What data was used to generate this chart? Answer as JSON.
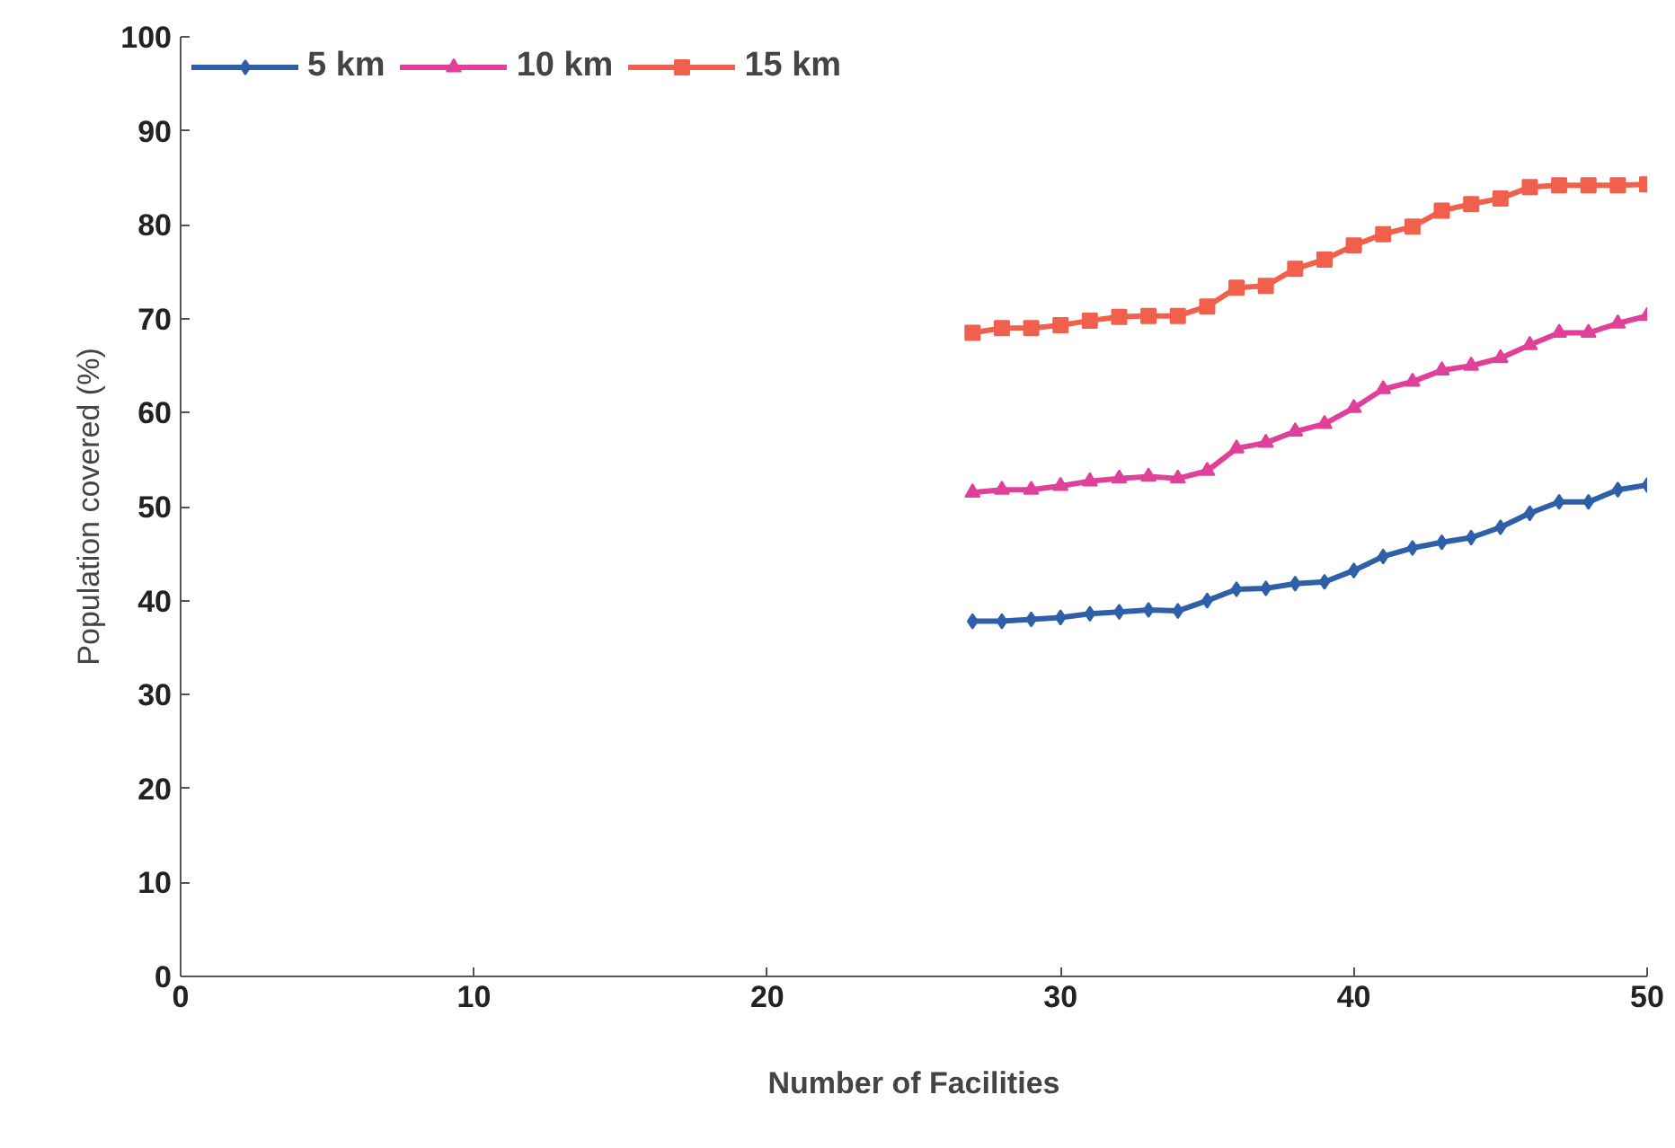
{
  "chart_data": {
    "type": "line",
    "xlabel": "Number of Facilities",
    "ylabel": "Population covered (%)",
    "x": [
      27,
      28,
      29,
      30,
      31,
      32,
      33,
      34,
      35,
      36,
      37,
      38,
      39,
      40,
      41,
      42,
      43,
      44,
      45,
      46,
      47,
      48,
      49,
      50
    ],
    "xlim": [
      0,
      50
    ],
    "xticks": [
      0,
      10,
      20,
      30,
      40,
      50
    ],
    "ylim": [
      0,
      100
    ],
    "yticks": [
      0,
      10,
      20,
      30,
      40,
      50,
      60,
      70,
      80,
      90,
      100
    ],
    "grid": false,
    "legend": "top left",
    "line_style": "solid",
    "series": [
      {
        "name": "5 km",
        "color": "#2e5fa8",
        "marker": "diamond",
        "values": [
          37.8,
          37.8,
          38,
          38.2,
          38.6,
          38.8,
          39,
          38.9,
          40,
          41.2,
          41.3,
          41.8,
          42,
          43.2,
          44.7,
          45.6,
          46.2,
          46.7,
          47.8,
          49.3,
          50.5,
          50.5,
          51.8,
          52.3
        ]
      },
      {
        "name": "10 km",
        "color": "#e0409a",
        "marker": "triangle",
        "values": [
          51.5,
          51.8,
          51.8,
          52.2,
          52.7,
          53,
          53.2,
          53,
          53.8,
          56.2,
          56.8,
          58,
          58.8,
          60.5,
          62.5,
          63.3,
          64.5,
          65,
          65.8,
          67.2,
          68.5,
          68.5,
          69.5,
          70.3
        ]
      },
      {
        "name": "15 km",
        "color": "#f0604d",
        "marker": "square",
        "values": [
          68.5,
          69,
          69,
          69.3,
          69.8,
          70.2,
          70.3,
          70.3,
          71.3,
          73.3,
          73.5,
          75.3,
          76.3,
          77.8,
          79,
          79.8,
          81.5,
          82.2,
          82.8,
          84,
          84.2,
          84.2,
          84.2,
          84.3
        ]
      }
    ]
  }
}
